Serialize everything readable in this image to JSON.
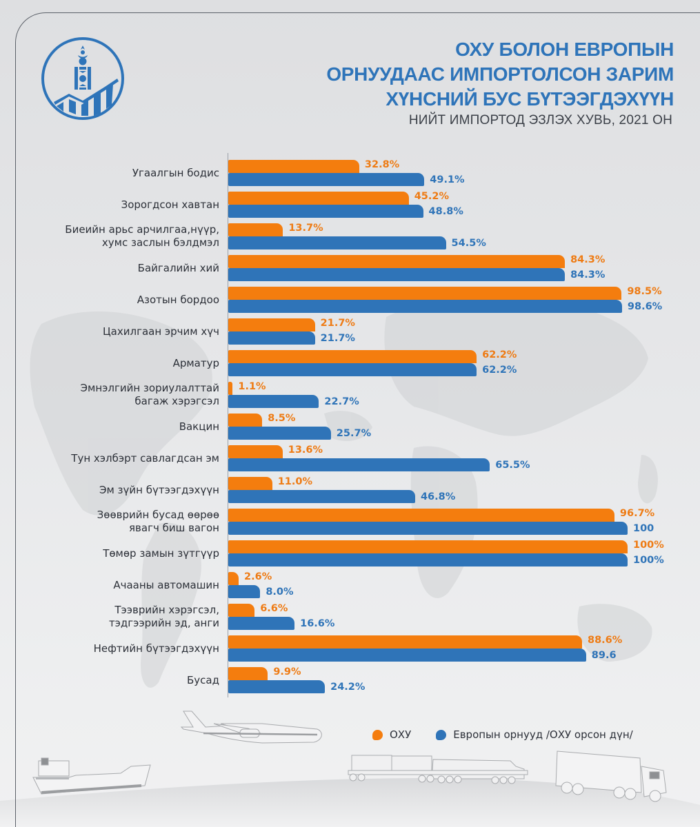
{
  "header": {
    "title_lines": [
      "ОХУ БОЛОН ЕВРОПЫН",
      "ОРНУУДААС ИМПОРТОЛСОН ЗАРИМ",
      "ХҮНСНИЙ БУС БҮТЭЭГДЭХҮҮН"
    ],
    "subtitle": "НИЙТ ИМПОРТОД ЭЗЛЭХ ХУВЬ, 2021 ОН"
  },
  "logo": {
    "icon": "statistics-soyombo-logo-icon"
  },
  "colors": {
    "russia": "#f47d0e",
    "europe": "#2f74b8",
    "title": "#2e74b9"
  },
  "legend": {
    "items": [
      {
        "label": "ОХУ",
        "color": "#f47d0e"
      },
      {
        "label": "Европын орнууд /ОХУ орсон дүн/",
        "color": "#2f74b8"
      }
    ],
    "position": "bottom-right"
  },
  "chart_data": {
    "type": "bar",
    "orientation": "horizontal",
    "title": "ОХУ БОЛОН ЕВРОПЫН ОРНУУДААС ИМПОРТОЛСОН ЗАРИМ ХҮНСНИЙ БУС БҮТЭЭГДЭХҮҮН",
    "subtitle": "НИЙТ ИМПОРТОД ЭЗЛЭХ ХУВЬ, 2021 ОН",
    "xlabel": "",
    "ylabel": "",
    "xlim": [
      0,
      100
    ],
    "grid": false,
    "categories": [
      [
        "Угаалгын бодис"
      ],
      [
        "Зорогдсон хавтан"
      ],
      [
        "Биеийн арьс арчилгаа,нүүр,",
        "хумс заслын бэлдмэл"
      ],
      [
        "Байгалийн хий"
      ],
      [
        "Азотын бордоо"
      ],
      [
        "Цахилгаан эрчим хүч"
      ],
      [
        "Арматур"
      ],
      [
        "Эмнэлгийн зориулалттай",
        "багаж хэрэгсэл"
      ],
      [
        "Вакцин"
      ],
      [
        "Тун хэлбэрт савлагдсан эм"
      ],
      [
        "Эм зүйн бүтээгдэхүүн"
      ],
      [
        "Зөөврийн бусад өөрөө",
        "явагч биш вагон"
      ],
      [
        "Төмөр замын зүтгүүр"
      ],
      [
        "Ачааны автомашин"
      ],
      [
        "Тээврийн хэрэгсэл,",
        "тэдгээрийн эд, анги"
      ],
      [
        "Нефтийн бүтээгдэхүүн"
      ],
      [
        "Бусад"
      ]
    ],
    "series": [
      {
        "name": "ОХУ",
        "values": [
          32.8,
          45.2,
          13.7,
          84.3,
          98.5,
          21.7,
          62.2,
          1.1,
          8.5,
          13.6,
          11.0,
          96.7,
          100,
          2.6,
          6.6,
          88.6,
          9.9
        ],
        "labels": [
          "32.8%",
          "45.2%",
          "13.7%",
          "84.3%",
          "98.5%",
          "21.7%",
          "62.2%",
          "1.1%",
          "8.5%",
          "13.6%",
          "11.0%",
          "96.7%",
          "100%",
          "2.6%",
          "6.6%",
          "88.6%",
          "9.9%"
        ]
      },
      {
        "name": "Европын орнууд /ОХУ орсон дүн/",
        "values": [
          49.1,
          48.8,
          54.5,
          84.3,
          98.6,
          21.7,
          62.2,
          22.7,
          25.7,
          65.5,
          46.8,
          100,
          100,
          8.0,
          16.6,
          89.6,
          24.2
        ],
        "labels": [
          "49.1%",
          "48.8%",
          "54.5%",
          "84.3%",
          "98.6%",
          "21.7%",
          "62.2%",
          "22.7%",
          "25.7%",
          "65.5%",
          "46.8%",
          "100",
          "100%",
          "8.0%",
          "16.6%",
          "89.6",
          "24.2%"
        ]
      }
    ]
  },
  "illustrations": [
    "airplane-icon",
    "cargo-ship-icon",
    "freight-train-icon",
    "cargo-truck-icon"
  ]
}
